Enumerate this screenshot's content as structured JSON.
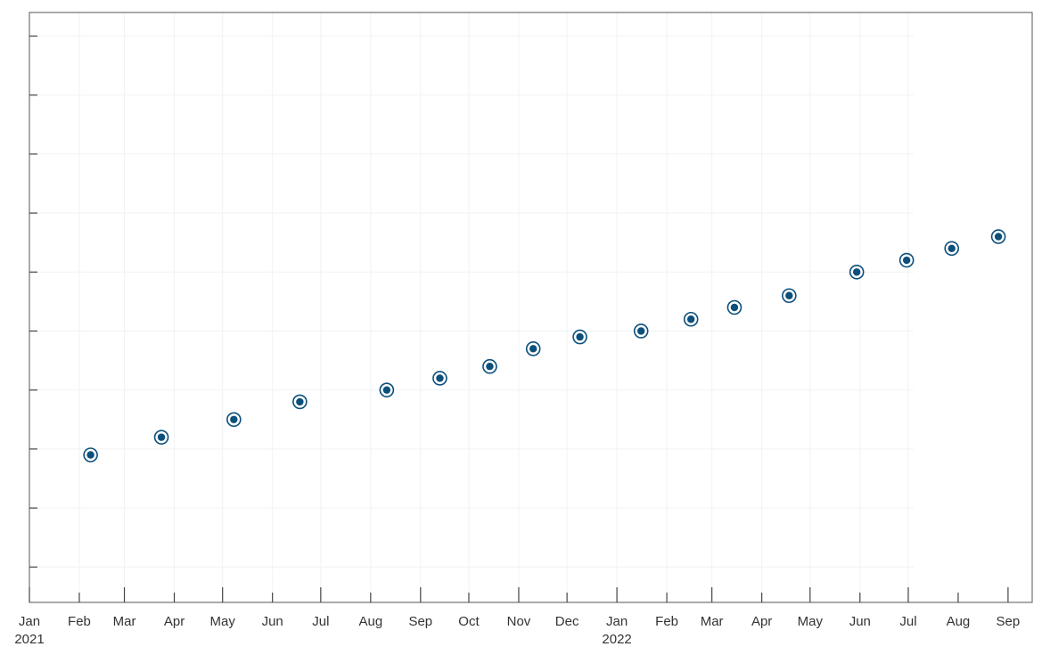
{
  "chart_data": {
    "type": "scatter",
    "title": "",
    "xlabel": "",
    "ylabel": "",
    "x_axis": {
      "type": "date",
      "range": [
        "2021-01-01",
        "2022-09-16"
      ],
      "ticks": [
        {
          "date": "2021-01-01",
          "label": "Jan",
          "year": "2021"
        },
        {
          "date": "2021-02-01",
          "label": "Feb"
        },
        {
          "date": "2021-03-01",
          "label": "Mar"
        },
        {
          "date": "2021-04-01",
          "label": "Apr"
        },
        {
          "date": "2021-05-01",
          "label": "May"
        },
        {
          "date": "2021-06-01",
          "label": "Jun"
        },
        {
          "date": "2021-07-01",
          "label": "Jul"
        },
        {
          "date": "2021-08-01",
          "label": "Aug"
        },
        {
          "date": "2021-09-01",
          "label": "Sep"
        },
        {
          "date": "2021-10-01",
          "label": "Oct"
        },
        {
          "date": "2021-11-01",
          "label": "Nov"
        },
        {
          "date": "2021-12-01",
          "label": "Dec"
        },
        {
          "date": "2022-01-01",
          "label": "Jan",
          "year": "2022"
        },
        {
          "date": "2022-02-01",
          "label": "Feb"
        },
        {
          "date": "2022-03-01",
          "label": "Mar"
        },
        {
          "date": "2022-04-01",
          "label": "Apr"
        },
        {
          "date": "2022-05-01",
          "label": "May"
        },
        {
          "date": "2022-06-01",
          "label": "Jun"
        },
        {
          "date": "2022-07-01",
          "label": "Jul"
        },
        {
          "date": "2022-08-01",
          "label": "Aug"
        },
        {
          "date": "2022-09-01",
          "label": "Sep"
        }
      ]
    },
    "y_axis": {
      "range": [
        0,
        10
      ],
      "tick_labels_shown": false,
      "ticks": [
        0.6,
        1.6,
        2.6,
        3.6,
        4.6,
        5.6,
        6.6,
        7.6,
        8.6,
        9.6
      ]
    },
    "grid": true,
    "points": [
      {
        "x": "2021-02-08",
        "y": 2.5
      },
      {
        "x": "2021-03-24",
        "y": 2.8
      },
      {
        "x": "2021-05-08",
        "y": 3.1
      },
      {
        "x": "2021-06-18",
        "y": 3.4
      },
      {
        "x": "2021-08-11",
        "y": 3.6
      },
      {
        "x": "2021-09-13",
        "y": 3.8
      },
      {
        "x": "2021-10-14",
        "y": 4.0
      },
      {
        "x": "2021-11-10",
        "y": 4.3
      },
      {
        "x": "2021-12-09",
        "y": 4.5
      },
      {
        "x": "2022-01-16",
        "y": 4.6
      },
      {
        "x": "2022-02-16",
        "y": 4.8
      },
      {
        "x": "2022-03-15",
        "y": 5.0
      },
      {
        "x": "2022-04-18",
        "y": 5.2
      },
      {
        "x": "2022-05-30",
        "y": 5.6
      },
      {
        "x": "2022-06-30",
        "y": 5.8
      },
      {
        "x": "2022-07-28",
        "y": 6.0
      },
      {
        "x": "2022-08-26",
        "y": 6.2
      }
    ],
    "marker_color": "#0b4f7c"
  }
}
